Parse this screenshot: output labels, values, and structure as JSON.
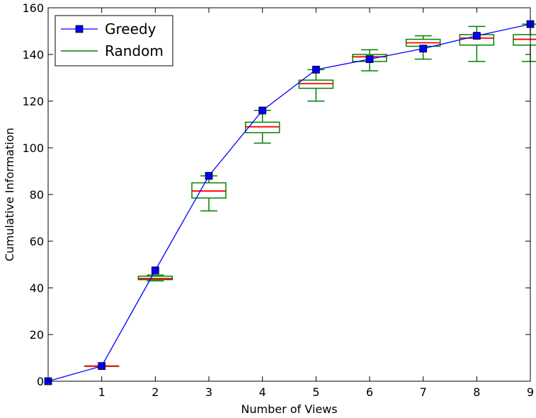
{
  "chart_data": {
    "type": "line",
    "xlabel": "Number of Views",
    "ylabel": "Cumulative Information",
    "xlim": [
      0,
      9
    ],
    "ylim": [
      0,
      160
    ],
    "xticks": [
      1,
      2,
      3,
      4,
      5,
      6,
      7,
      8,
      9
    ],
    "yticks": [
      0,
      20,
      40,
      60,
      80,
      100,
      120,
      140,
      160
    ],
    "grid": false,
    "legend_position": "top-left",
    "series": [
      {
        "name": "Greedy",
        "kind": "line-with-square-markers",
        "color": "#0000ff",
        "x": [
          0,
          1,
          2,
          3,
          4,
          5,
          6,
          7,
          8,
          9
        ],
        "y": [
          0,
          6.5,
          47.5,
          88,
          116,
          133.5,
          138,
          142.5,
          148,
          153
        ]
      },
      {
        "name": "Random",
        "kind": "boxplot",
        "box_color": "#008000",
        "median_color": "#ff0000",
        "boxes": [
          {
            "x": 1,
            "whisker_low": 6.5,
            "q1": 6.5,
            "median": 6.5,
            "q3": 6.5,
            "whisker_high": 6.5
          },
          {
            "x": 2,
            "whisker_low": 43,
            "q1": 43.5,
            "median": 44,
            "q3": 45,
            "whisker_high": 45.5
          },
          {
            "x": 3,
            "whisker_low": 73,
            "q1": 78.5,
            "median": 81.5,
            "q3": 85,
            "whisker_high": 88
          },
          {
            "x": 4,
            "whisker_low": 102,
            "q1": 106.5,
            "median": 109,
            "q3": 111,
            "whisker_high": 116
          },
          {
            "x": 5,
            "whisker_low": 120,
            "q1": 125.5,
            "median": 127.5,
            "q3": 129,
            "whisker_high": 133.5
          },
          {
            "x": 6,
            "whisker_low": 133,
            "q1": 137,
            "median": 139,
            "q3": 140,
            "whisker_high": 142
          },
          {
            "x": 7,
            "whisker_low": 138,
            "q1": 143.5,
            "median": 145,
            "q3": 146.5,
            "whisker_high": 148
          },
          {
            "x": 8,
            "whisker_low": 137,
            "q1": 144,
            "median": 147,
            "q3": 148.5,
            "whisker_high": 152
          },
          {
            "x": 9,
            "whisker_low": 137,
            "q1": 144,
            "median": 146.5,
            "q3": 148.5,
            "whisker_high": 153
          }
        ]
      }
    ]
  }
}
